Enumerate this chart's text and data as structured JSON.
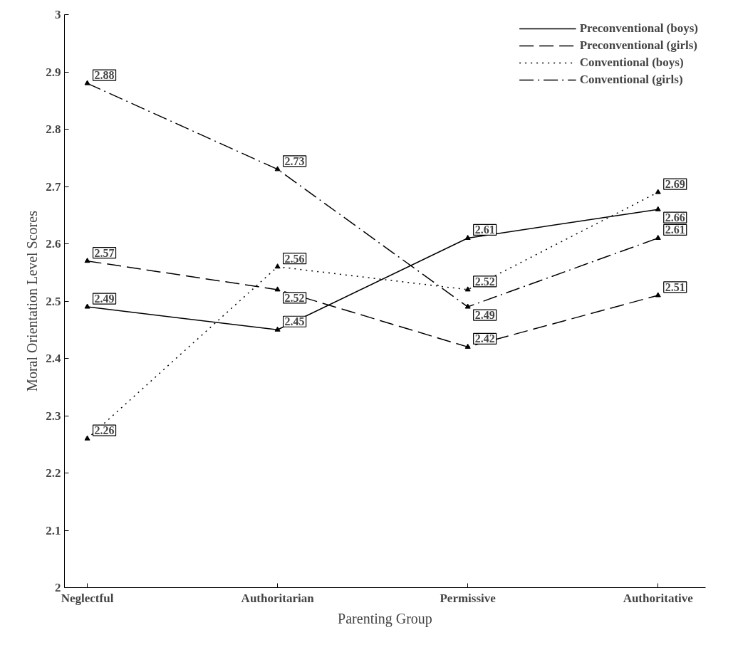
{
  "chart_data": {
    "type": "line",
    "xlabel": "Parenting Group",
    "ylabel": "Moral Orientation Level Scores",
    "categories": [
      "Neglectful",
      "Authoritarian",
      "Permissive",
      "Authoritative"
    ],
    "series": [
      {
        "name": "Preconventional (boys)",
        "color": "#000000",
        "line_style": "solid",
        "values": [
          2.49,
          2.45,
          2.61,
          2.66
        ]
      },
      {
        "name": "Preconventional (girls)",
        "color": "#000000",
        "line_style": "dashed",
        "values": [
          2.57,
          2.52,
          2.42,
          2.51
        ]
      },
      {
        "name": "Conventional (boys)",
        "color": "#000000",
        "line_style": "dotted",
        "values": [
          2.26,
          2.56,
          2.52,
          2.69
        ]
      },
      {
        "name": "Conventional (girls)",
        "color": "#000000",
        "line_style": "dashdot",
        "values": [
          2.88,
          2.73,
          2.49,
          2.61
        ]
      }
    ],
    "ylim": [
      2,
      3
    ],
    "yticks": [
      2,
      2.1,
      2.2,
      2.3,
      2.4,
      2.5,
      2.6,
      2.7,
      2.8,
      2.9,
      3
    ],
    "data_labels": true,
    "grid": false,
    "legend": "top right",
    "marker": "triangle"
  }
}
